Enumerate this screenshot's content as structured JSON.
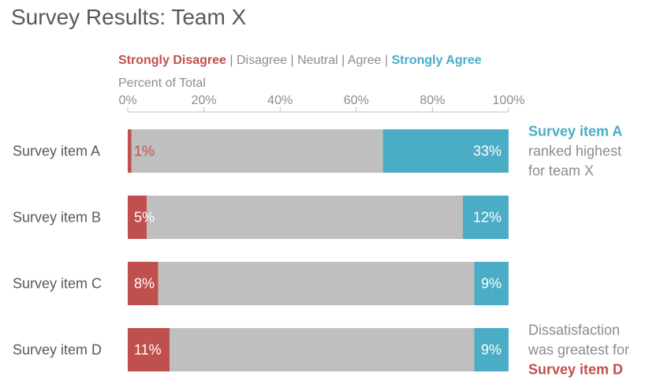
{
  "chart_data": {
    "type": "bar",
    "orientation": "horizontal",
    "stacked": true,
    "title": "Survey Results: Team X",
    "xlabel": "Percent of Total",
    "xlim": [
      0,
      100
    ],
    "ticks": [
      "0%",
      "20%",
      "40%",
      "60%",
      "80%",
      "100%"
    ],
    "legend": {
      "position": "top",
      "separator": "|",
      "items": [
        {
          "name": "Strongly Disagree",
          "color": "#c0504d",
          "emphasis": true
        },
        {
          "name": "Disagree",
          "color": "#bfbfbf",
          "emphasis": false
        },
        {
          "name": "Neutral",
          "color": "#bfbfbf",
          "emphasis": false
        },
        {
          "name": "Agree",
          "color": "#bfbfbf",
          "emphasis": false
        },
        {
          "name": "Strongly Agree",
          "color": "#4bacc6",
          "emphasis": true
        }
      ]
    },
    "categories": [
      "Survey item A",
      "Survey item B",
      "Survey item C",
      "Survey item D"
    ],
    "series": [
      {
        "name": "Strongly Disagree",
        "values": [
          1,
          5,
          8,
          11
        ],
        "labels": [
          "1%",
          "5%",
          "8%",
          "11%"
        ],
        "color": "#c0504d"
      },
      {
        "name": "Disagree / Neutral / Agree",
        "values": [
          66,
          83,
          83,
          80
        ],
        "color": "#bfbfbf"
      },
      {
        "name": "Strongly Agree",
        "values": [
          33,
          12,
          9,
          9
        ],
        "labels": [
          "33%",
          "12%",
          "9%",
          "9%"
        ],
        "color": "#4bacc6"
      }
    ],
    "annotations": [
      {
        "item_index": 0,
        "lines": [
          {
            "text": "Survey item A",
            "style": "blue"
          },
          {
            "text": "ranked highest",
            "style": "gray"
          },
          {
            "text": "for team X",
            "style": "gray"
          }
        ]
      },
      {
        "item_index": 3,
        "lines": [
          {
            "text": "Dissatisfaction",
            "style": "gray"
          },
          {
            "text": "was greatest for",
            "style": "gray"
          },
          {
            "text": "Survey item D",
            "style": "red"
          }
        ]
      }
    ]
  }
}
